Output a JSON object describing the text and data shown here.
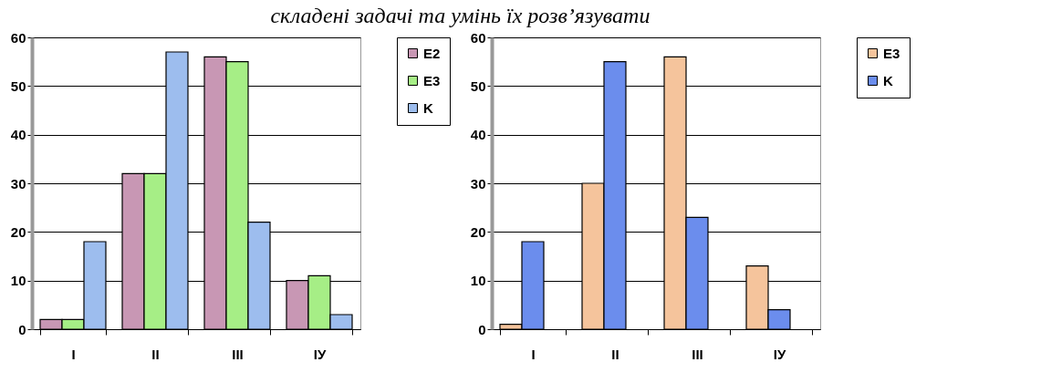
{
  "chart_data": [
    {
      "type": "bar",
      "title": "складені задачі та умінь їх розв’язувати",
      "categories": [
        "I",
        "II",
        "III",
        "IУ"
      ],
      "series": [
        {
          "name": "E2",
          "color": "#c897b4",
          "values": [
            2,
            32,
            56,
            10
          ]
        },
        {
          "name": "E3",
          "color": "#a6ee86",
          "values": [
            2,
            32,
            55,
            11
          ]
        },
        {
          "name": "K",
          "color": "#9dbdee",
          "values": [
            18,
            57,
            22,
            3
          ]
        }
      ],
      "ylim": [
        0,
        60
      ],
      "yticks": [
        0,
        10,
        20,
        30,
        40,
        50,
        60
      ],
      "grid": "y",
      "legend": "right"
    },
    {
      "type": "bar",
      "categories": [
        "I",
        "II",
        "III",
        "IУ"
      ],
      "series": [
        {
          "name": "E3",
          "color": "#f5c49c",
          "values": [
            1,
            30,
            56,
            13
          ]
        },
        {
          "name": "K",
          "color": "#6b8ded",
          "values": [
            18,
            55,
            23,
            4
          ]
        }
      ],
      "ylim": [
        0,
        60
      ],
      "yticks": [
        0,
        10,
        20,
        30,
        40,
        50,
        60
      ],
      "grid": "y",
      "legend": "right"
    }
  ]
}
